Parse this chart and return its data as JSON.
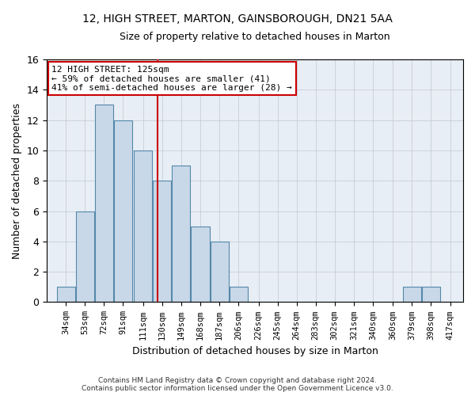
{
  "title": "12, HIGH STREET, MARTON, GAINSBOROUGH, DN21 5AA",
  "subtitle": "Size of property relative to detached houses in Marton",
  "xlabel": "Distribution of detached houses by size in Marton",
  "ylabel": "Number of detached properties",
  "bin_labels": [
    "34sqm",
    "53sqm",
    "72sqm",
    "91sqm",
    "111sqm",
    "130sqm",
    "149sqm",
    "168sqm",
    "187sqm",
    "206sqm",
    "226sqm",
    "245sqm",
    "264sqm",
    "283sqm",
    "302sqm",
    "321sqm",
    "340sqm",
    "360sqm",
    "379sqm",
    "398sqm",
    "417sqm"
  ],
  "bar_values": [
    1,
    6,
    13,
    12,
    10,
    8,
    9,
    5,
    4,
    1,
    0,
    0,
    0,
    0,
    0,
    0,
    0,
    0,
    1,
    1,
    0
  ],
  "bar_color": "#c8d8e8",
  "bar_edge_color": "#5588aa",
  "ylim": [
    0,
    16
  ],
  "yticks": [
    0,
    2,
    4,
    6,
    8,
    10,
    12,
    14,
    16
  ],
  "red_line_x": 125,
  "bin_width": 19,
  "bin_centers": [
    34,
    53,
    72,
    91,
    111,
    130,
    149,
    168,
    187,
    206,
    226,
    245,
    264,
    283,
    302,
    321,
    340,
    360,
    379,
    398,
    417
  ],
  "xlim_left": 15,
  "xlim_right": 430,
  "annotation_line1": "12 HIGH STREET: 125sqm",
  "annotation_line2": "← 59% of detached houses are smaller (41)",
  "annotation_line3": "41% of semi-detached houses are larger (28) →",
  "annotation_box_color": "#ffffff",
  "annotation_box_edge": "#cc0000",
  "footer": "Contains HM Land Registry data © Crown copyright and database right 2024.\nContains public sector information licensed under the Open Government Licence v3.0.",
  "background_color": "#ffffff",
  "plot_bg_color": "#e8eef5",
  "grid_color": "#c0c8d0",
  "title_fontsize": 10,
  "subtitle_fontsize": 9,
  "ylabel_fontsize": 9,
  "xlabel_fontsize": 9,
  "tick_fontsize": 7.5,
  "annot_fontsize": 8
}
